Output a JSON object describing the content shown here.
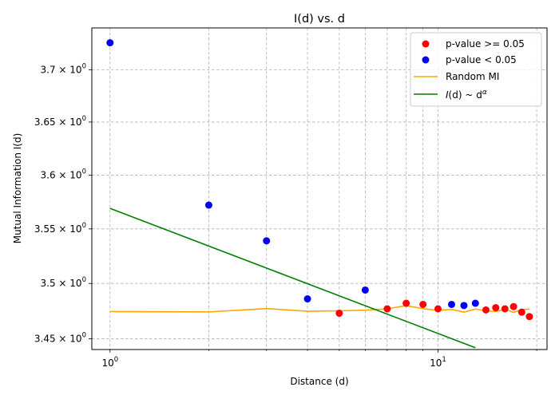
{
  "chart_data": {
    "type": "scatter",
    "title": "I(d) vs. d",
    "xlabel": "Distance (d)",
    "ylabel": "Mutual Information I(d)",
    "x_scale": "log",
    "y_scale": "log",
    "xlim": [
      0.88,
      21.5
    ],
    "ylim": [
      3.4404,
      3.7404
    ],
    "grid": true,
    "legend_position": "top-right",
    "x_ticks": [
      {
        "value": 1,
        "label_base": "10",
        "label_exp": "0"
      },
      {
        "value": 10,
        "label_base": "10",
        "label_exp": "1"
      }
    ],
    "x_minor_ticks": [
      2,
      3,
      4,
      5,
      6,
      7,
      8,
      9,
      20
    ],
    "y_ticks": [
      {
        "value": 3.45,
        "label_mant": "3.45",
        "label_base": "10",
        "label_exp": "0"
      },
      {
        "value": 3.5,
        "label_mant": "3.5",
        "label_base": "10",
        "label_exp": "0"
      },
      {
        "value": 3.55,
        "label_mant": "3.55",
        "label_base": "10",
        "label_exp": "0"
      },
      {
        "value": 3.6,
        "label_mant": "3.6",
        "label_base": "10",
        "label_exp": "0"
      },
      {
        "value": 3.65,
        "label_mant": "3.65",
        "label_base": "10",
        "label_exp": "0"
      },
      {
        "value": 3.7,
        "label_mant": "3.7",
        "label_base": "10",
        "label_exp": "0"
      }
    ],
    "series": [
      {
        "name": "p-value >= 0.05",
        "kind": "scatter",
        "color": "#ff0000",
        "points": [
          [
            5,
            3.473
          ],
          [
            7,
            3.477
          ],
          [
            8,
            3.482
          ],
          [
            9,
            3.481
          ],
          [
            10,
            3.477
          ],
          [
            14,
            3.476
          ],
          [
            15,
            3.478
          ],
          [
            16,
            3.477
          ],
          [
            17,
            3.479
          ],
          [
            18,
            3.474
          ],
          [
            19,
            3.47
          ]
        ]
      },
      {
        "name": "p-value < 0.05",
        "kind": "scatter",
        "color": "#0000ff",
        "points": [
          [
            1,
            3.726
          ],
          [
            2,
            3.572
          ],
          [
            3,
            3.539
          ],
          [
            4,
            3.486
          ],
          [
            6,
            3.494
          ],
          [
            11,
            3.481
          ],
          [
            12,
            3.48
          ],
          [
            13,
            3.482
          ]
        ]
      },
      {
        "name": "Random MI",
        "kind": "line",
        "color": "#ffa500",
        "points": [
          [
            1,
            3.4745
          ],
          [
            2,
            3.4742
          ],
          [
            3,
            3.4772
          ],
          [
            4,
            3.4748
          ],
          [
            5,
            3.4752
          ],
          [
            6,
            3.4758
          ],
          [
            7,
            3.477
          ],
          [
            8,
            3.4798
          ],
          [
            9,
            3.4772
          ],
          [
            10,
            3.4755
          ],
          [
            11,
            3.4765
          ],
          [
            12,
            3.474
          ],
          [
            13,
            3.4768
          ],
          [
            14,
            3.4752
          ],
          [
            15,
            3.4745
          ],
          [
            16,
            3.4765
          ],
          [
            17,
            3.4738
          ],
          [
            18,
            3.4762
          ],
          [
            19,
            3.4768
          ]
        ]
      },
      {
        "name": "I(d) ~ d^α",
        "name_math": {
          "prefix": "I",
          "paren": "(d) ~ d",
          "sup": "α"
        },
        "kind": "line",
        "color": "#008000",
        "points": [
          [
            1,
            3.569
          ],
          [
            13,
            3.442
          ]
        ]
      }
    ]
  }
}
